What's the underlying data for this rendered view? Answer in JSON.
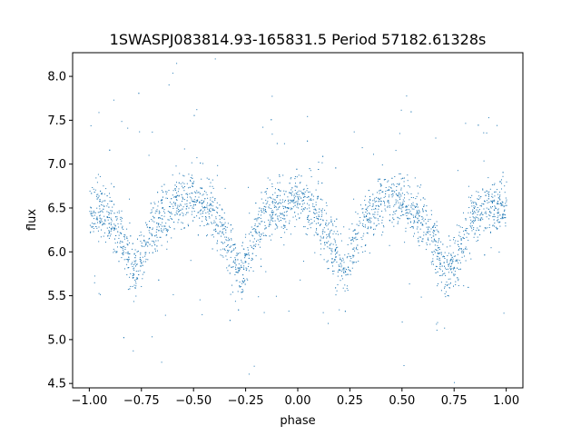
{
  "chart_data": {
    "type": "scatter",
    "title": "1SWASPJ083814.93-165831.5 Period 57182.61328s",
    "xlabel": "phase",
    "ylabel": "flux",
    "xlim": [
      -1.08,
      1.08
    ],
    "ylim": [
      4.45,
      8.27
    ],
    "xticks": [
      -1.0,
      -0.75,
      -0.5,
      -0.25,
      0.0,
      0.25,
      0.5,
      0.75,
      1.0
    ],
    "xtick_labels": [
      "−1.00",
      "−0.75",
      "−0.50",
      "−0.25",
      "0.00",
      "0.25",
      "0.50",
      "0.75",
      "1.00"
    ],
    "yticks": [
      4.5,
      5.0,
      5.5,
      6.0,
      6.5,
      7.0,
      7.5,
      8.0
    ],
    "ytick_labels": [
      "4.5",
      "5.0",
      "5.5",
      "6.0",
      "6.5",
      "7.0",
      "7.5",
      "8.0"
    ],
    "grid": false,
    "marker_color": "#1f77b4",
    "series": [
      {
        "description_of_shape": "phase-folded light curve; maxima near 6.5-6.6, minima near 5.75 (deeper) and 5.8",
        "x": [
          -1.0,
          -0.95,
          -0.9,
          -0.85,
          -0.8,
          -0.775,
          -0.75,
          -0.7,
          -0.65,
          -0.6,
          -0.55,
          -0.5,
          -0.45,
          -0.4,
          -0.35,
          -0.3,
          -0.275,
          -0.25,
          -0.2,
          -0.15,
          -0.1,
          -0.05,
          0.0,
          0.05,
          0.1,
          0.15,
          0.2,
          0.225,
          0.25,
          0.3,
          0.35,
          0.4,
          0.45,
          0.5,
          0.55,
          0.6,
          0.65,
          0.7,
          0.725,
          0.75,
          0.8,
          0.85,
          0.9,
          0.95,
          1.0
        ],
        "y": [
          6.55,
          6.5,
          6.35,
          6.15,
          5.85,
          5.8,
          5.95,
          6.3,
          6.45,
          6.55,
          6.6,
          6.6,
          6.55,
          6.4,
          6.15,
          5.85,
          5.75,
          5.9,
          6.25,
          6.45,
          6.5,
          6.55,
          6.6,
          6.55,
          6.4,
          6.15,
          5.9,
          5.8,
          5.95,
          6.3,
          6.45,
          6.55,
          6.6,
          6.6,
          6.5,
          6.35,
          6.1,
          5.8,
          5.75,
          5.9,
          6.25,
          6.45,
          6.5,
          6.55,
          6.55
        ]
      }
    ]
  }
}
